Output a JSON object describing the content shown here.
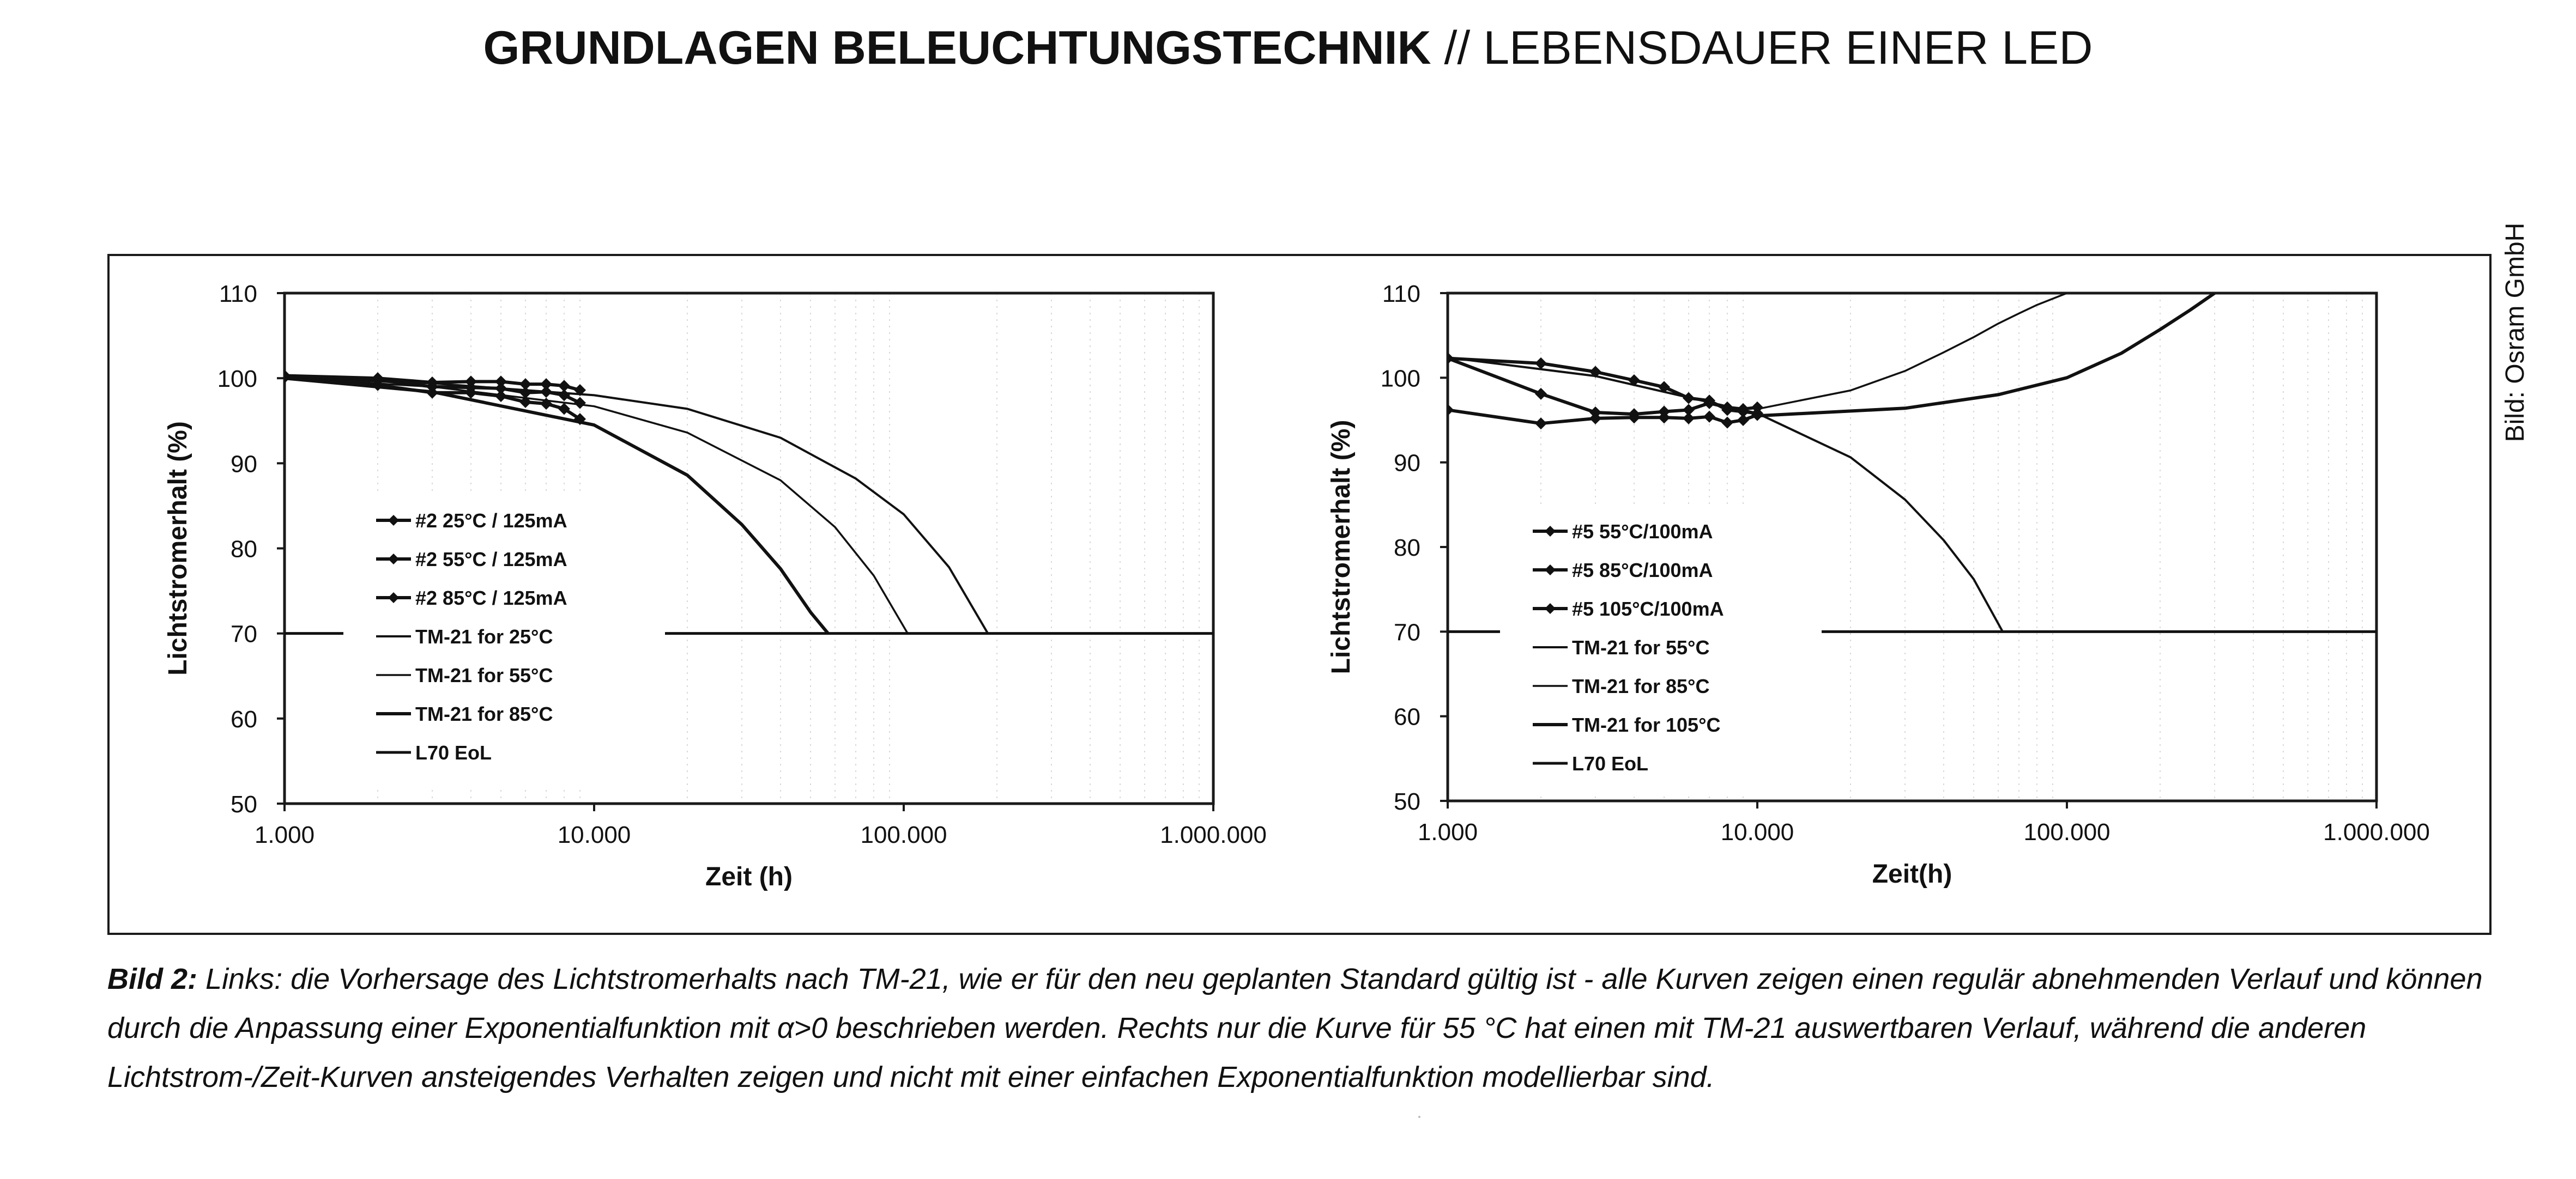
{
  "header": {
    "bold": "GRUNDLAGEN BELEUCHTUNGSTECHNIK",
    "separator": "//",
    "light": "LEBENSDAUER EINER LED"
  },
  "credit": "Bild: Osram GmbH",
  "caption": {
    "label": "Bild 2:",
    "text": "Links: die Vorhersage des Lichtstromerhalts nach TM-21, wie er für den neu geplanten Standard gültig ist - alle Kurven zeigen einen regulär abnehmenden Verlauf und können durch die Anpassung einer Exponentialfunktion mit α>0 beschrieben werden. Rechts nur die Kurve für 55 °C hat einen mit TM-21 auswertbaren Verlauf, während die anderen Lichtstrom-/Zeit-Kurven ansteigendes Verhalten zeigen und nicht mit einer einfachen Exponentialfunktion modellierbar sind."
  },
  "chart_data": [
    {
      "type": "line",
      "x_scale": "log",
      "xlabel": "Zeit (h)",
      "ylabel": "Lichtstromerhalt (%)",
      "xlim": [
        1000,
        1000000
      ],
      "ylim": [
        50,
        110
      ],
      "x_ticks": [
        1000,
        10000,
        100000,
        1000000
      ],
      "x_tick_labels": [
        "1.000",
        "10.000",
        "100.000",
        "1.000.000"
      ],
      "y_ticks": [
        50,
        60,
        70,
        80,
        90,
        100,
        110
      ],
      "grid": true,
      "legend_position": "left-center",
      "series": [
        {
          "name": "#2 25°C / 125mA",
          "marker": "diamond",
          "x": [
            1000,
            2000,
            3000,
            4000,
            5000,
            6000,
            7000,
            8000,
            9000
          ],
          "y": [
            100.3,
            100.0,
            99.5,
            99.6,
            99.6,
            99.3,
            99.3,
            99.1,
            98.6
          ]
        },
        {
          "name": "#2 55°C / 125mA",
          "marker": "diamond",
          "x": [
            1000,
            2000,
            3000,
            4000,
            5000,
            6000,
            7000,
            8000,
            9000
          ],
          "y": [
            100.2,
            99.8,
            99.0,
            98.9,
            98.8,
            98.3,
            98.4,
            98.0,
            97.1
          ]
        },
        {
          "name": "#2 85°C / 125mA",
          "marker": "diamond",
          "x": [
            1000,
            2000,
            3000,
            4000,
            5000,
            6000,
            7000,
            8000,
            9000
          ],
          "y": [
            100.1,
            99.2,
            98.3,
            98.3,
            97.9,
            97.2,
            97.0,
            96.4,
            95.2
          ]
        },
        {
          "name": "TM-21 for 25°C",
          "x": [
            1000,
            3000,
            10000,
            20000,
            40000,
            70000,
            100000,
            140000,
            187000
          ],
          "y": [
            100.0,
            99.4,
            98.0,
            96.4,
            93.0,
            88.2,
            84.0,
            77.8,
            70.0
          ]
        },
        {
          "name": "TM-21 for 55°C",
          "x": [
            1000,
            3000,
            10000,
            20000,
            40000,
            60000,
            80000,
            103000
          ],
          "y": [
            100.0,
            99.0,
            96.7,
            93.6,
            88.0,
            82.5,
            76.8,
            70.0
          ]
        },
        {
          "name": "TM-21 for 85°C",
          "x": [
            1000,
            3000,
            10000,
            20000,
            30000,
            40000,
            50000,
            57000
          ],
          "y": [
            100.0,
            98.4,
            94.5,
            88.6,
            82.8,
            77.6,
            72.5,
            70.0
          ]
        },
        {
          "name": "L70 EoL",
          "x": [
            1000,
            1000000
          ],
          "y": [
            70,
            70
          ]
        }
      ]
    },
    {
      "type": "line",
      "x_scale": "log",
      "xlabel": "Zeit(h)",
      "ylabel": "Lichtstromerhalt (%)",
      "xlim": [
        1000,
        1000000
      ],
      "ylim": [
        50,
        110
      ],
      "x_ticks": [
        1000,
        10000,
        100000,
        1000000
      ],
      "x_tick_labels": [
        "1.000",
        "10.000",
        "100.000",
        "1.000.000"
      ],
      "y_ticks": [
        50,
        60,
        70,
        80,
        90,
        100,
        110
      ],
      "grid": true,
      "legend_position": "left-center",
      "series": [
        {
          "name": "#5 55°C/100mA",
          "marker": "diamond",
          "x": [
            1000,
            2000,
            3000,
            4000,
            5000,
            6000,
            7000,
            8000,
            9000,
            10000
          ],
          "y": [
            102.3,
            101.7,
            100.7,
            99.7,
            98.9,
            97.6,
            97.3,
            96.2,
            96.0,
            95.8
          ]
        },
        {
          "name": "#5 85°C/100mA",
          "marker": "diamond",
          "x": [
            1000,
            2000,
            3000,
            4000,
            5000,
            6000,
            7000,
            8000,
            9000,
            10000
          ],
          "y": [
            102.3,
            98.1,
            95.9,
            95.7,
            96.0,
            96.2,
            97.0,
            96.5,
            96.3,
            96.5
          ]
        },
        {
          "name": "#5 105°C/100mA",
          "marker": "diamond",
          "x": [
            1000,
            2000,
            3000,
            4000,
            5000,
            6000,
            7000,
            8000,
            9000,
            10000
          ],
          "y": [
            96.2,
            94.6,
            95.2,
            95.3,
            95.3,
            95.2,
            95.4,
            94.7,
            95.0,
            95.6
          ]
        },
        {
          "name": "TM-21 for 55°C",
          "x": [
            1000,
            3000,
            10000,
            20000,
            30000,
            40000,
            50000,
            62000
          ],
          "y": [
            102.4,
            100.2,
            95.8,
            90.6,
            85.6,
            80.8,
            76.2,
            70.0
          ]
        },
        {
          "name": "TM-21 for 85°C",
          "x": [
            10000,
            20000,
            30000,
            40000,
            50000,
            60000,
            70000,
            80000,
            100000
          ],
          "y": [
            96.3,
            98.5,
            100.8,
            103.0,
            104.8,
            106.4,
            107.6,
            108.6,
            110.0
          ]
        },
        {
          "name": "TM-21 for 105°C",
          "x": [
            10000,
            30000,
            60000,
            100000,
            150000,
            200000,
            250000,
            300000
          ],
          "y": [
            95.5,
            96.4,
            98.0,
            100.0,
            102.9,
            105.7,
            108.0,
            110.0
          ]
        },
        {
          "name": "L70 EoL",
          "x": [
            1000,
            1000000
          ],
          "y": [
            70,
            70
          ]
        }
      ]
    }
  ]
}
